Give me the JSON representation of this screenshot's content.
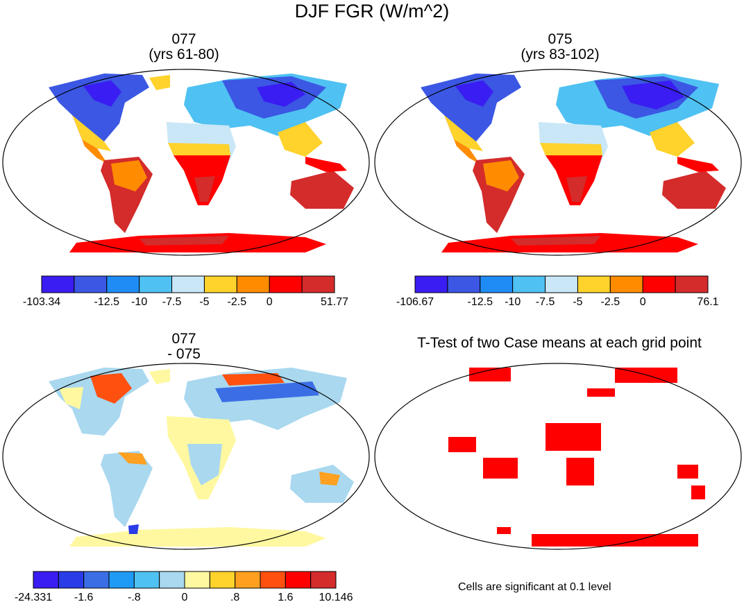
{
  "title": "DJF FGR (W/m^2)",
  "panels": [
    {
      "id": "p1",
      "title_line1": "077",
      "title_line2": "(yrs 61-80)",
      "colorbar": {
        "colors": [
          "#3a1df2",
          "#3b57e3",
          "#1f8cf5",
          "#4fc1f2",
          "#c9e7f7",
          "#ffd22c",
          "#ff8c00",
          "#ff0000",
          "#d42b2b"
        ],
        "labels": [
          "-103.34",
          "-12.5",
          "-10",
          "-7.5",
          "-5",
          "-2.5",
          "0",
          "51.77"
        ],
        "label_positions": [
          0,
          2,
          3,
          4,
          5,
          6,
          7,
          9
        ]
      }
    },
    {
      "id": "p2",
      "title_line1": "075",
      "title_line2": "(yrs 83-102)",
      "colorbar": {
        "colors": [
          "#3a1df2",
          "#3b57e3",
          "#1f8cf5",
          "#4fc1f2",
          "#c9e7f7",
          "#ffd22c",
          "#ff8c00",
          "#ff0000",
          "#d42b2b"
        ],
        "labels": [
          "-106.67",
          "-12.5",
          "-10",
          "-7.5",
          "-5",
          "-2.5",
          "0",
          "76.1"
        ],
        "label_positions": [
          0,
          2,
          3,
          4,
          5,
          6,
          7,
          9
        ]
      }
    },
    {
      "id": "p3",
      "title_line1": "077",
      "title_line2": "- 075",
      "colorbar": {
        "colors": [
          "#3a1df2",
          "#2a3be8",
          "#3b6ee5",
          "#1f9af5",
          "#4fc1f2",
          "#a9d8ef",
          "#fff8a0",
          "#ffd22c",
          "#ffa020",
          "#ff5010",
          "#ff0000",
          "#d42b2b"
        ],
        "labels": [
          "-24.331",
          "-1.6",
          "-.8",
          "0",
          ".8",
          "1.6",
          "10.146"
        ],
        "label_positions": [
          0,
          2,
          4,
          6,
          8,
          10,
          12
        ]
      }
    },
    {
      "id": "p4",
      "title_line1": "T-Test of two Case means at each grid point",
      "note": "Cells are significant at 0.1 level"
    }
  ]
}
